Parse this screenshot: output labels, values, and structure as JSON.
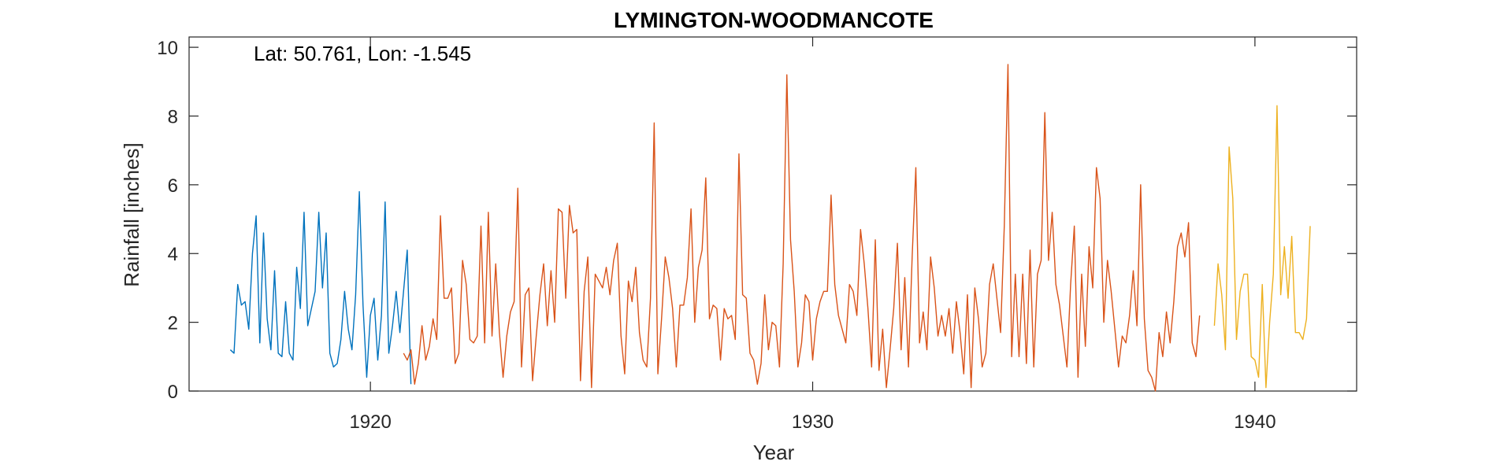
{
  "chart_data": {
    "type": "line",
    "title": "LYMINGTON-WOODMANCOTE",
    "xlabel": "Year",
    "ylabel": "Rainfall [inches]",
    "annotation": "Lat: 50.761, Lon: -1.545",
    "xlim": [
      1915.9,
      1942.3
    ],
    "ylim": [
      0,
      10.3
    ],
    "xticks": [
      1920,
      1930,
      1940
    ],
    "yticks": [
      0,
      2,
      4,
      6,
      8,
      10
    ],
    "grid": false,
    "box": true,
    "series": [
      {
        "color": "#0072BD",
        "x_start": 1916.833,
        "step": 0.08333,
        "values": [
          1.2,
          1.1,
          3.1,
          2.5,
          2.6,
          1.8,
          4.0,
          5.1,
          1.4,
          4.6,
          2.1,
          1.2,
          3.5,
          1.1,
          1.0,
          2.6,
          1.1,
          0.9,
          3.6,
          2.4,
          5.2,
          1.9,
          2.4,
          2.9,
          5.2,
          3.0,
          4.6,
          1.1,
          0.7,
          0.8,
          1.5,
          2.9,
          1.8,
          1.2,
          2.8,
          5.8,
          2.5,
          0.4,
          2.2,
          2.7,
          0.9,
          2.2,
          5.5,
          1.1,
          1.9,
          2.9,
          1.7,
          2.9,
          4.1,
          0.2
        ]
      },
      {
        "color": "#D95319",
        "x_start": 1920.75,
        "step": 0.08333,
        "values": [
          1.1,
          0.9,
          1.2,
          0.2,
          0.8,
          1.9,
          0.9,
          1.3,
          2.1,
          1.5,
          5.1,
          2.7,
          2.7,
          3.0,
          0.8,
          1.1,
          3.8,
          3.1,
          1.5,
          1.4,
          1.6,
          4.8,
          1.4,
          5.2,
          1.6,
          3.7,
          1.7,
          0.4,
          1.6,
          2.3,
          2.6,
          5.9,
          0.7,
          2.8,
          3.0,
          0.3,
          1.6,
          2.8,
          3.7,
          1.9,
          3.5,
          2.0,
          5.3,
          5.2,
          2.7,
          5.4,
          4.6,
          4.7,
          0.3,
          2.9,
          3.9,
          0.1,
          3.4,
          3.2,
          3.0,
          3.6,
          2.8,
          3.8,
          4.3,
          1.6,
          0.5,
          3.2,
          2.6,
          3.6,
          1.7,
          0.9,
          0.7,
          2.7,
          7.8,
          0.5,
          2.1,
          3.9,
          3.3,
          2.4,
          0.7,
          2.5,
          2.5,
          3.3,
          5.3,
          2.0,
          3.6,
          4.1,
          6.2,
          2.1,
          2.5,
          2.4,
          0.9,
          2.4,
          2.1,
          2.2,
          1.5,
          6.9,
          2.8,
          2.7,
          1.1,
          0.9,
          0.2,
          0.8,
          2.8,
          1.2,
          2.0,
          1.9,
          0.7,
          3.7,
          9.2,
          4.4,
          2.9,
          0.7,
          1.4,
          2.8,
          2.6,
          0.9,
          2.1,
          2.6,
          2.9,
          2.9,
          5.7,
          3.1,
          2.2,
          1.8,
          1.4,
          3.1,
          2.9,
          2.2,
          4.7,
          3.7,
          2.4,
          0.7,
          4.4,
          0.6,
          1.8,
          0.1,
          1.2,
          2.4,
          4.3,
          1.2,
          3.3,
          0.7,
          3.9,
          6.5,
          1.4,
          2.3,
          1.2,
          3.9,
          3.0,
          1.6,
          2.2,
          1.6,
          2.4,
          1.1,
          2.6,
          1.7,
          0.5,
          2.8,
          0.1,
          3.0,
          2.1,
          0.7,
          1.1,
          3.1,
          3.7,
          2.7,
          1.7,
          4.8,
          9.5,
          1.0,
          3.4,
          1.0,
          3.4,
          0.8,
          4.1,
          0.7,
          3.4,
          3.8,
          8.1,
          3.8,
          5.2,
          3.1,
          2.5,
          1.6,
          0.7,
          3.1,
          4.8,
          0.4,
          3.4,
          1.3,
          4.2,
          3.0,
          6.5,
          5.6,
          2.0,
          3.8,
          2.9,
          1.8,
          0.7,
          1.6,
          1.4,
          2.2,
          3.5,
          1.9,
          6.0,
          2.1,
          0.6,
          0.4,
          0.0,
          1.7,
          1.0,
          2.3,
          1.4,
          2.6,
          4.2,
          4.6,
          3.9,
          4.9,
          1.4,
          1.0,
          2.2
        ]
      },
      {
        "color": "#EDB120",
        "x_start": 1939.083,
        "step": 0.08333,
        "values": [
          1.9,
          3.7,
          2.8,
          1.2,
          7.1,
          5.6,
          1.5,
          2.9,
          3.4,
          3.4,
          1.0,
          0.9,
          0.4,
          3.1,
          0.1,
          2.0,
          3.4,
          8.3,
          2.8,
          4.2,
          2.7,
          4.5,
          1.7,
          1.7,
          1.5,
          2.1,
          4.8
        ]
      }
    ]
  }
}
